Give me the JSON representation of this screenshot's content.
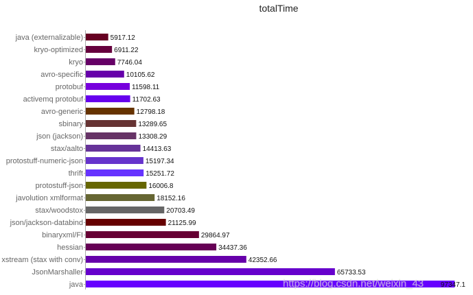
{
  "chart_data": {
    "type": "bar",
    "orientation": "horizontal",
    "title": "totalTime",
    "xlabel": "",
    "ylabel": "",
    "xlim": [
      0,
      100000
    ],
    "grid": false,
    "legend": "none",
    "categories": [
      "java (externalizable)",
      "kryo-optimized",
      "kryo",
      "avro-specific",
      "protobuf",
      "activemq protobuf",
      "avro-generic",
      "sbinary",
      "json (jackson)",
      "stax/aalto",
      "protostuff-numeric-json",
      "thrift",
      "protostuff-json",
      "javolution xmlformat",
      "stax/woodstox",
      "json/jackson-databind",
      "binaryxml/FI",
      "hessian",
      "xstream (stax with conv)",
      "JsonMarshaller",
      "java"
    ],
    "values": [
      5917.12,
      6911.22,
      7746.04,
      10105.62,
      11598.11,
      11702.63,
      12798.18,
      13289.65,
      13308.29,
      14413.63,
      15197.34,
      15251.72,
      16006.8,
      18152.16,
      20703.49,
      21125.99,
      29864.97,
      34437.36,
      42352.66,
      65733.53,
      97347.1
    ],
    "value_labels": [
      "5917.12",
      "6911.22",
      "7746.04",
      "10105.62",
      "11598.11",
      "11702.63",
      "12798.18",
      "13289.65",
      "13308.29",
      "14413.63",
      "15197.34",
      "15251.72",
      "16006.8",
      "18152.16",
      "20703.49",
      "21125.99",
      "29864.97",
      "34437.36",
      "42352.66",
      "65733.53",
      "97347.1"
    ],
    "colors": [
      "#660022",
      "#66003d",
      "#660066",
      "#6600aa",
      "#7700dd",
      "#6600ee",
      "#663300",
      "#663333",
      "#663366",
      "#663399",
      "#6633cc",
      "#6633ff",
      "#666600",
      "#666633",
      "#666666",
      "#660000",
      "#660033",
      "#660055",
      "#6600aa",
      "#6600cc",
      "#6600ff"
    ]
  },
  "watermark": "https://blog.csdn.net/weixin_43"
}
